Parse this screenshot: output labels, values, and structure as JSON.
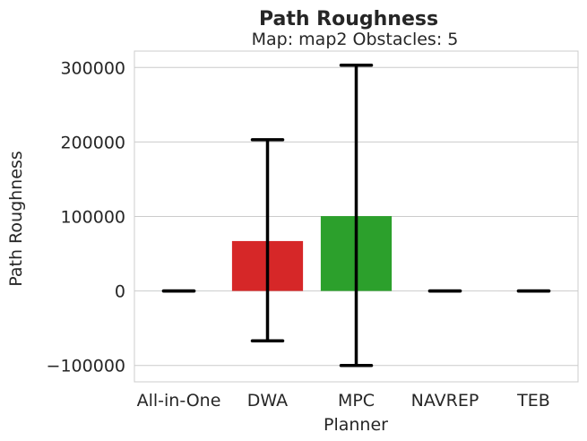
{
  "chart_data": {
    "type": "bar",
    "title": "Path Roughness",
    "subtitle": "Map: map2 Obstacles: 5",
    "xlabel": "Planner",
    "ylabel": "Path Roughness",
    "categories": [
      "All-in-One",
      "DWA",
      "MPC",
      "NAVREP",
      "TEB"
    ],
    "values": [
      0,
      67000,
      100500,
      0,
      0
    ],
    "error_low": [
      0,
      -67000,
      -100000,
      0,
      0
    ],
    "error_high": [
      0,
      203000,
      303000,
      0,
      0
    ],
    "colors": [
      "#1f77b4",
      "#d62728",
      "#2ca02c",
      "#9467bd",
      "#8c564b"
    ],
    "ylim": [
      -122000,
      322000
    ],
    "yticks": [
      -100000,
      0,
      100000,
      200000,
      300000
    ],
    "ytick_labels": [
      "−100000",
      "0",
      "100000",
      "200000",
      "300000"
    ],
    "grid": true,
    "errorbar_color": "#000000"
  }
}
